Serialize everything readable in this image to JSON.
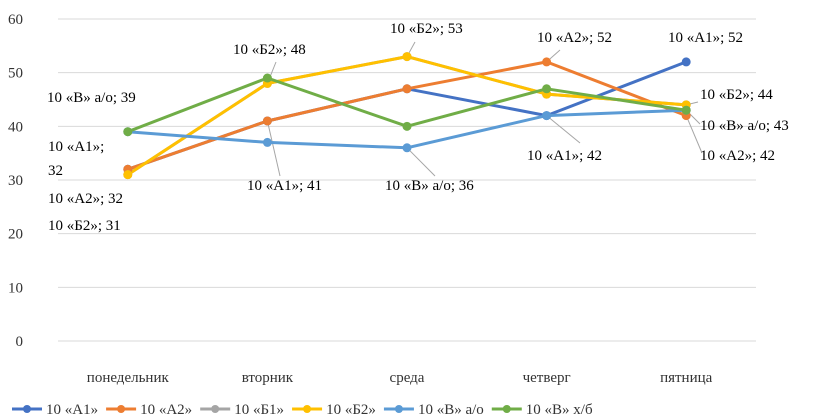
{
  "chart_data": {
    "type": "line",
    "categories": [
      "понедельник",
      "вторник",
      "среда",
      "четверг",
      "пятница"
    ],
    "ylim": [
      0,
      60
    ],
    "yticks": [
      0,
      10,
      20,
      30,
      40,
      50,
      60
    ],
    "grid": "horizontal",
    "legend_position": "bottom",
    "series": [
      {
        "name": "10 «А1»",
        "color": "#4472C4",
        "values": [
          32,
          41,
          47,
          42,
          52
        ]
      },
      {
        "name": "10 «А2»",
        "color": "#ED7D31",
        "values": [
          32,
          41,
          47,
          52,
          42
        ]
      },
      {
        "name": "10 «Б1»",
        "color": "#A5A5A5",
        "values": [
          31,
          48,
          53,
          46,
          44
        ]
      },
      {
        "name": "10 «Б2»",
        "color": "#FFC000",
        "values": [
          31,
          48,
          53,
          46,
          44
        ]
      },
      {
        "name": "10 «В» а/о",
        "color": "#5B9BD5",
        "values": [
          39,
          37,
          36,
          42,
          43
        ]
      },
      {
        "name": "10 «В» х/б",
        "color": "#70AD47",
        "values": [
          39,
          49,
          40,
          47,
          43
        ]
      }
    ],
    "annotations": [
      {
        "text": "10 «В» а/о; 39",
        "series": 4,
        "index": 0
      },
      {
        "text": "10 «А1»;",
        "series": 0,
        "index": 0
      },
      {
        "text": "32",
        "series": 0,
        "index": 0
      },
      {
        "text": "10 «А2»; 32",
        "series": 1,
        "index": 0
      },
      {
        "text": "10 «Б2»; 31",
        "series": 3,
        "index": 0
      },
      {
        "text": "10 «Б2»; 48",
        "series": 3,
        "index": 1
      },
      {
        "text": "10 «А1»; 41",
        "series": 0,
        "index": 1
      },
      {
        "text": "10 «Б2»; 53",
        "series": 3,
        "index": 2
      },
      {
        "text": "10 «В» а/о; 36",
        "series": 4,
        "index": 2
      },
      {
        "text": "10 «А2»; 52",
        "series": 1,
        "index": 3
      },
      {
        "text": "10 «А1»; 42",
        "series": 0,
        "index": 3
      },
      {
        "text": "10 «А1»; 52",
        "series": 0,
        "index": 4
      },
      {
        "text": "10 «Б2»; 44",
        "series": 3,
        "index": 4
      },
      {
        "text": "10 «В» а/о; 43",
        "series": 4,
        "index": 4
      },
      {
        "text": "10 «А2»; 42",
        "series": 1,
        "index": 4
      }
    ]
  }
}
